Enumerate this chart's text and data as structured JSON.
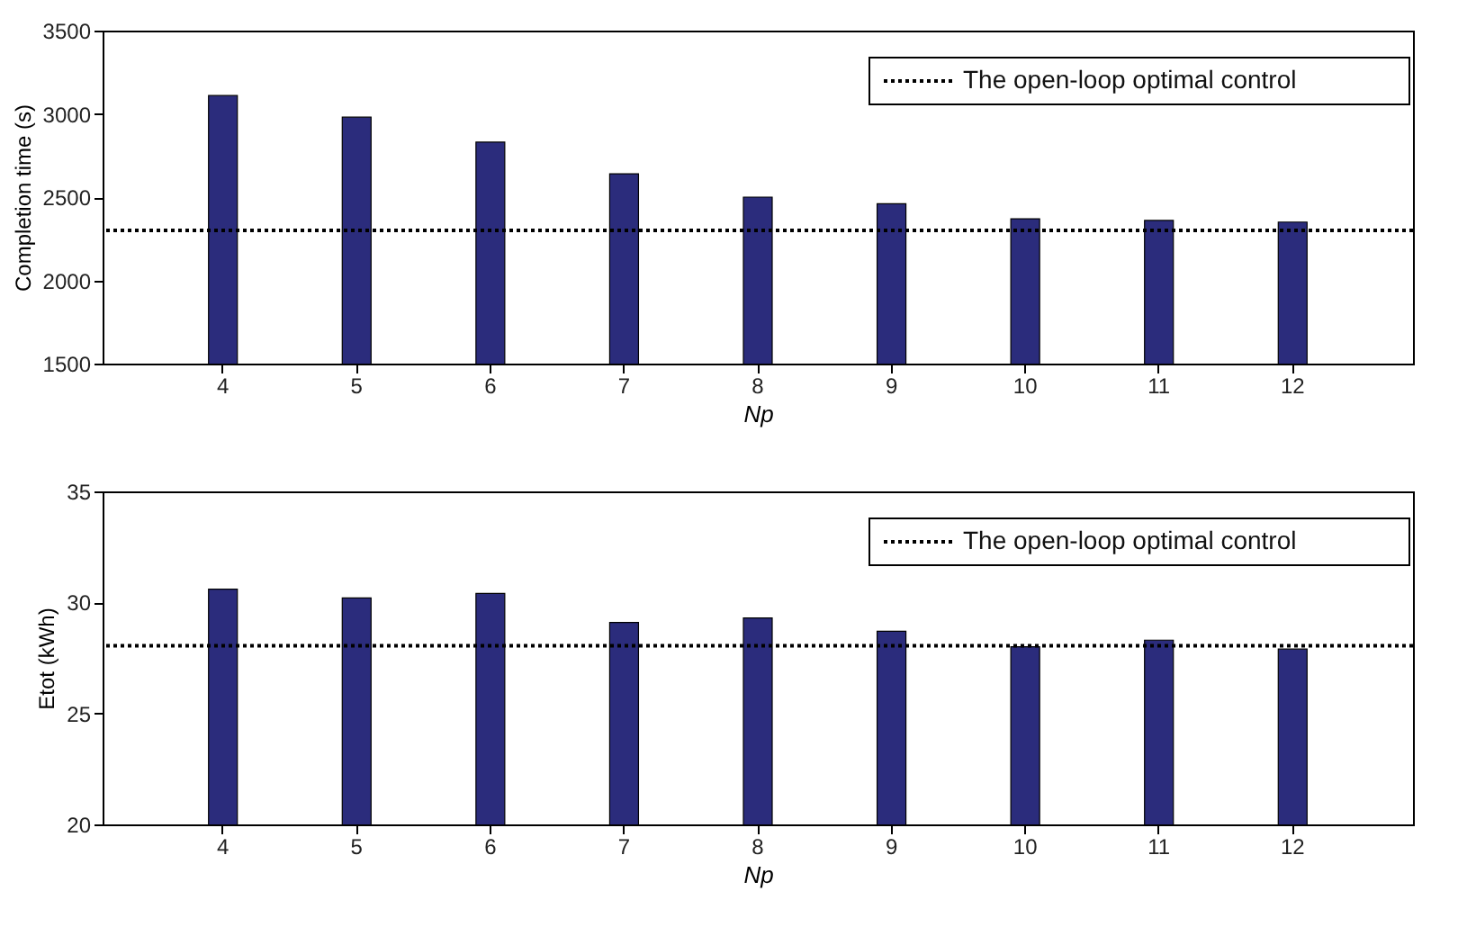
{
  "chart_data": [
    {
      "type": "bar",
      "categories": [
        "4",
        "5",
        "6",
        "7",
        "8",
        "9",
        "10",
        "11",
        "12"
      ],
      "xlabel": "Np",
      "ylabel": "Completion time (s)",
      "series": [
        {
          "color": "#2b2c7c",
          "values": [
            3110,
            2980,
            2830,
            2640,
            2500,
            2460,
            2370,
            2360,
            2350
          ]
        }
      ],
      "ylim": [
        1500,
        3500
      ],
      "yticks": [
        1500,
        2000,
        2500,
        3000,
        3500
      ],
      "grid": false,
      "legend": "top right",
      "ref_lines": [
        {
          "axis": "y",
          "value": 2300,
          "label": "The open-loop optimal control",
          "color": "#000000",
          "line_style": "dotted"
        }
      ]
    },
    {
      "type": "bar",
      "categories": [
        "4",
        "5",
        "6",
        "7",
        "8",
        "9",
        "10",
        "11",
        "12"
      ],
      "xlabel": "Np",
      "ylabel": "Etot (kWh)",
      "series": [
        {
          "color": "#2b2c7c",
          "values": [
            30.6,
            30.2,
            30.4,
            29.1,
            29.3,
            28.7,
            28.0,
            28.3,
            27.9
          ]
        }
      ],
      "ylim": [
        20,
        35
      ],
      "yticks": [
        20,
        25,
        30,
        35
      ],
      "grid": false,
      "legend": "top right",
      "ref_lines": [
        {
          "axis": "y",
          "value": 28.05,
          "label": "The open-loop optimal control",
          "color": "#000000",
          "line_style": "dotted"
        }
      ]
    }
  ]
}
